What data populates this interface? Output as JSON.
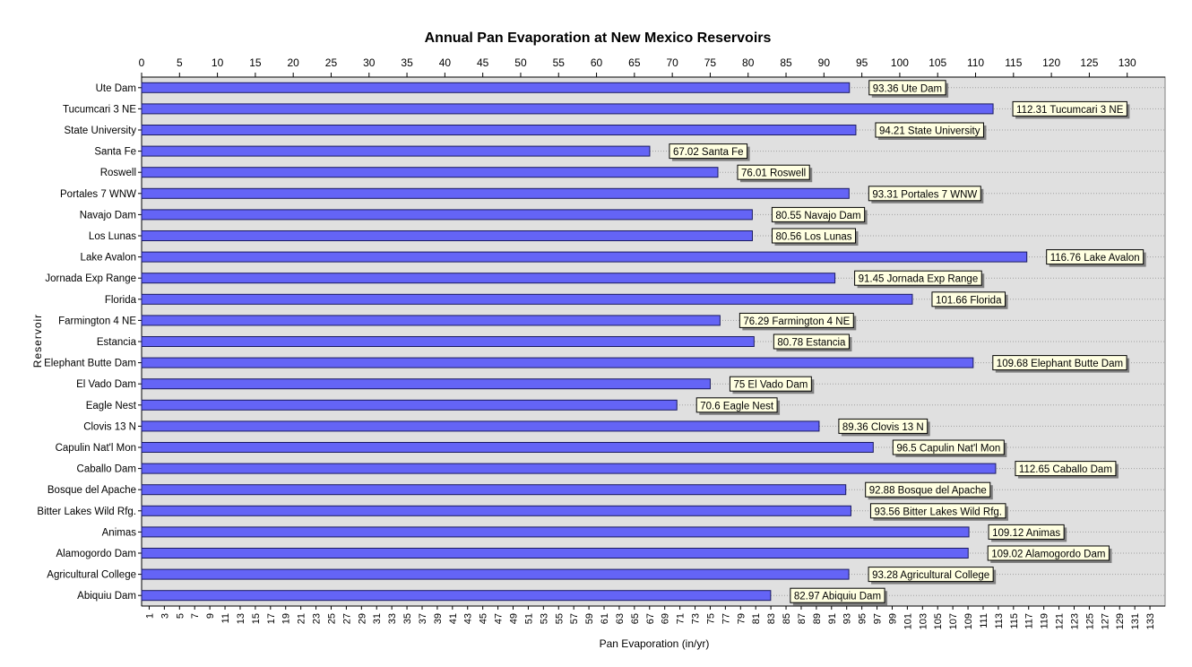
{
  "chart_data": {
    "type": "bar",
    "orientation": "horizontal",
    "title": "Annual Pan Evaporation at New Mexico Reservoirs",
    "xlabel": "Pan Evaporation (in/yr)",
    "ylabel": "Reservoir",
    "xlim": [
      0,
      135
    ],
    "top_ticks": [
      0,
      5,
      10,
      15,
      20,
      25,
      30,
      35,
      40,
      45,
      50,
      55,
      60,
      65,
      70,
      75,
      80,
      85,
      90,
      95,
      100,
      105,
      110,
      115,
      120,
      125,
      130
    ],
    "bottom_ticks": [
      1,
      3,
      5,
      7,
      9,
      11,
      13,
      15,
      17,
      19,
      21,
      23,
      25,
      27,
      29,
      31,
      33,
      35,
      37,
      39,
      41,
      43,
      45,
      47,
      49,
      51,
      53,
      55,
      57,
      59,
      61,
      63,
      65,
      67,
      69,
      71,
      73,
      75,
      77,
      79,
      81,
      83,
      85,
      87,
      89,
      91,
      93,
      95,
      97,
      99,
      101,
      103,
      105,
      107,
      109,
      111,
      113,
      115,
      117,
      119,
      121,
      123,
      125,
      127,
      129,
      131,
      133
    ],
    "grid": true,
    "categories": [
      "Ute Dam",
      "Tucumcari 3 NE",
      "State University",
      "Santa Fe",
      "Roswell",
      "Portales 7 WNW",
      "Navajo Dam",
      "Los Lunas",
      "Lake Avalon",
      "Jornada Exp Range",
      "Florida",
      "Farmington 4 NE",
      "Estancia",
      "Elephant Butte Dam",
      "El Vado Dam",
      "Eagle Nest",
      "Clovis 13 N",
      "Capulin Nat'l Mon",
      "Caballo Dam",
      "Bosque del Apache",
      "Bitter Lakes Wild Rfg.",
      "Animas",
      "Alamogordo Dam",
      "Agricultural College",
      "Abiquiu Dam"
    ],
    "values": [
      93.36,
      112.31,
      94.21,
      67.02,
      76.01,
      93.31,
      80.55,
      80.56,
      116.76,
      91.45,
      101.66,
      76.29,
      80.78,
      109.68,
      75,
      70.6,
      89.36,
      96.5,
      112.65,
      92.88,
      93.56,
      109.12,
      109.02,
      93.28,
      82.97
    ],
    "data_labels": [
      "93.36 Ute Dam",
      "112.31 Tucumcari 3 NE",
      "94.21 State University",
      "67.02 Santa Fe",
      "76.01 Roswell",
      "93.31 Portales 7 WNW",
      "80.55 Navajo Dam",
      "80.56 Los Lunas",
      "116.76 Lake Avalon",
      "91.45 Jornada Exp Range",
      "101.66 Florida",
      "76.29 Farmington 4 NE",
      "80.78 Estancia",
      "109.68 Elephant Butte Dam",
      "75 El Vado Dam",
      "70.6 Eagle Nest",
      "89.36 Clovis 13 N",
      "96.5 Capulin Nat'l Mon",
      "112.65 Caballo Dam",
      "92.88 Bosque del Apache",
      "93.56 Bitter Lakes Wild Rfg.",
      "109.12 Animas",
      "109.02 Alamogordo Dam",
      "93.28 Agricultural College",
      "82.97 Abiquiu Dam"
    ],
    "colors": {
      "bar": "#6464f6",
      "bar_stroke": "#1a1a60",
      "plot_bg": "#e0e0e0",
      "label_bg": "#ffffe1",
      "grid": "#a0a0a0"
    }
  }
}
